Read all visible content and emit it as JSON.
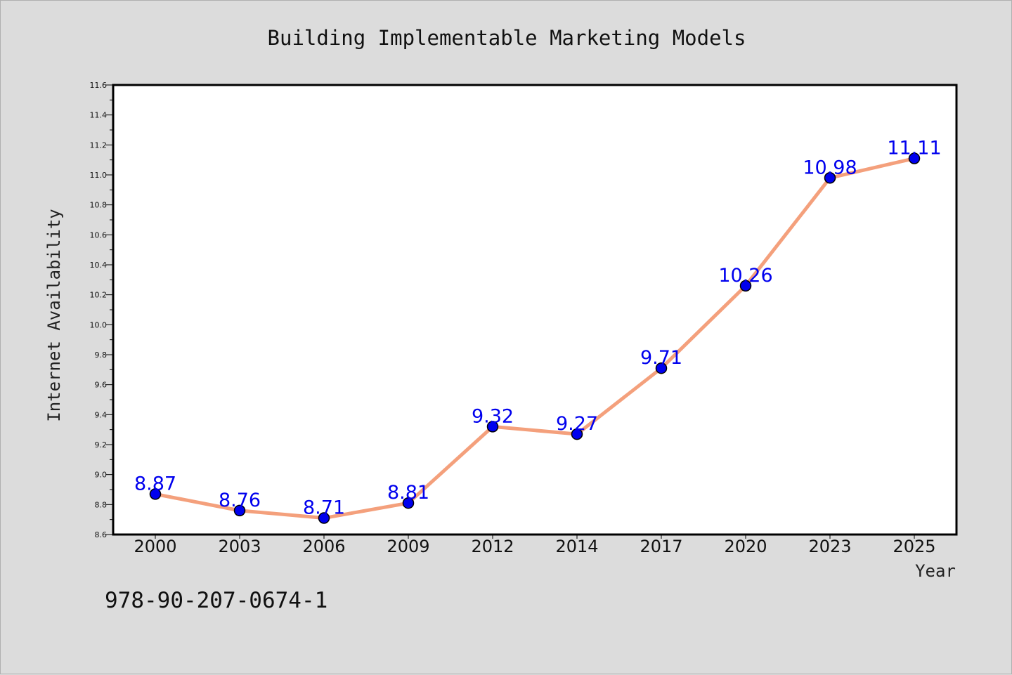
{
  "chart_data": {
    "type": "line",
    "title": "Building Implementable Marketing Models",
    "xlabel": "Year",
    "ylabel": "Internet Availability",
    "categories": [
      "2000",
      "2003",
      "2006",
      "2009",
      "2012",
      "2014",
      "2017",
      "2020",
      "2023",
      "2025"
    ],
    "series": [
      {
        "values": [
          8.87,
          8.76,
          8.71,
          8.81,
          9.32,
          9.27,
          9.71,
          10.26,
          10.98,
          11.11
        ]
      }
    ],
    "ylim": [
      8.6,
      11.6
    ],
    "yticks": [
      8.6,
      8.8,
      9.0,
      9.2,
      9.4,
      9.6,
      9.8,
      10.0,
      10.2,
      10.4,
      10.6,
      10.8,
      11.0,
      11.2,
      11.4,
      11.6
    ],
    "grid": false,
    "line_color": "#f4a07c",
    "marker_color": "#0000ee",
    "label_color": "#0000ee"
  },
  "footer": {
    "isbn": "978-90-207-0674-1"
  }
}
